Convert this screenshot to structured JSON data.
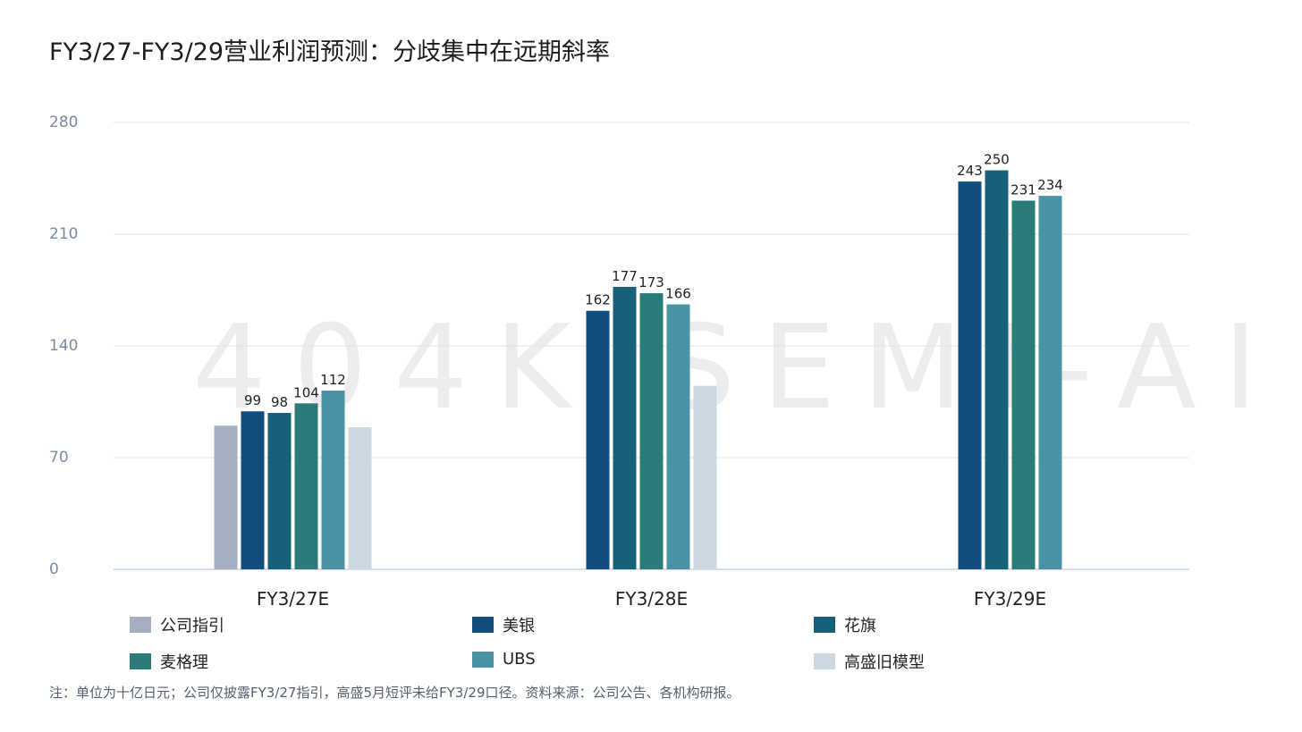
{
  "title": "FY3/27-FY3/29营业利润预测：分歧集中在远期斜率",
  "watermark": "404K SEMI-AI",
  "note": "注：单位为十亿日元；公司仅披露FY3/27指引，高盛5月短评未给FY3/29口径。资料来源：公司公告、各机构研报。",
  "chart_data": {
    "type": "bar",
    "categories": [
      "FY3/27E",
      "FY3/28E",
      "FY3/29E"
    ],
    "ylim": [
      0,
      280
    ],
    "yticks": [
      0,
      70,
      140,
      210,
      280
    ],
    "grid": true,
    "legend_position": "bottom",
    "series": [
      {
        "name": "公司指引",
        "color": "#a3afbf",
        "values": [
          90,
          null,
          null
        ],
        "labeled": false
      },
      {
        "name": "美银",
        "color": "#134d80",
        "values": [
          99,
          162,
          243
        ],
        "labeled": true
      },
      {
        "name": "花旗",
        "color": "#17607a",
        "values": [
          98,
          177,
          250
        ],
        "labeled": true
      },
      {
        "name": "麦格理",
        "color": "#2a7b7a",
        "values": [
          104,
          173,
          231
        ],
        "labeled": true
      },
      {
        "name": "UBS",
        "color": "#4a93a6",
        "values": [
          112,
          166,
          234
        ],
        "labeled": true
      },
      {
        "name": "高盛旧模型",
        "color": "#cdd7e0",
        "values": [
          89,
          115,
          null
        ],
        "labeled": false
      }
    ]
  }
}
